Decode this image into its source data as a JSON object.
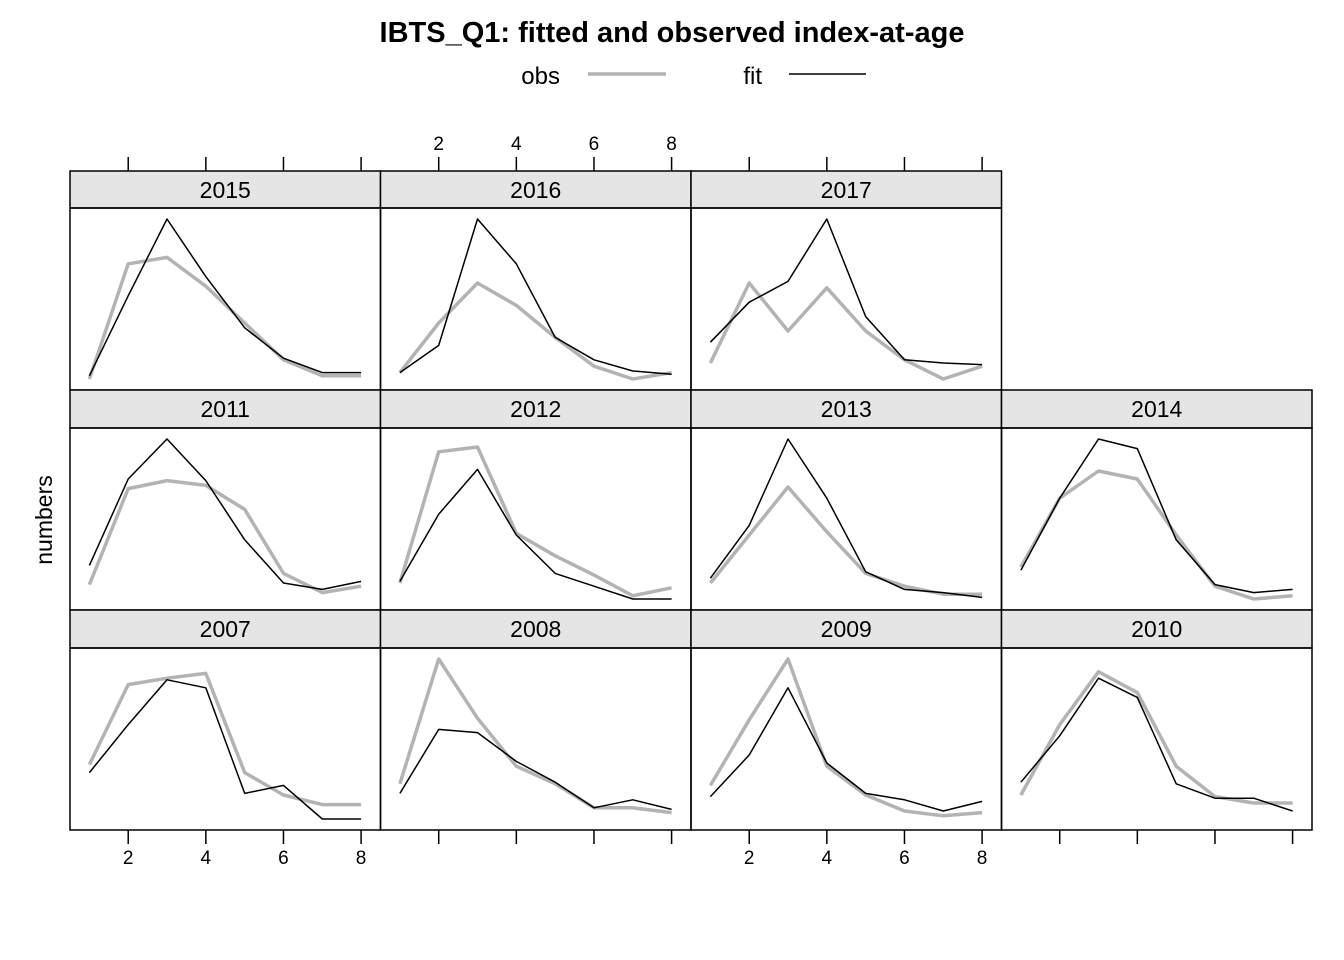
{
  "chart_data": {
    "type": "line",
    "title": "IBTS_Q1: fitted and observed index-at-age",
    "ylabel": "numbers",
    "xlabel": "",
    "xlim": [
      0.5,
      8.5
    ],
    "x_ticks": [
      2,
      4,
      6,
      8
    ],
    "ages": [
      1,
      2,
      3,
      4,
      5,
      6,
      7,
      8
    ],
    "legend": [
      {
        "name": "obs",
        "color": "#b3b3b3"
      },
      {
        "name": "fit",
        "color": "#000000"
      }
    ],
    "strip_color": "#e5e5e5",
    "panels": [
      {
        "year": "2015",
        "obs": [
          0.0,
          0.72,
          0.76,
          0.58,
          0.35,
          0.12,
          0.02,
          0.02
        ],
        "fit": [
          0.02,
          0.52,
          1.0,
          0.64,
          0.32,
          0.13,
          0.04,
          0.04
        ]
      },
      {
        "year": "2016",
        "obs": [
          0.04,
          0.35,
          0.6,
          0.46,
          0.26,
          0.08,
          0.0,
          0.04
        ],
        "fit": [
          0.04,
          0.21,
          1.0,
          0.72,
          0.26,
          0.12,
          0.05,
          0.03
        ]
      },
      {
        "year": "2017",
        "obs": [
          0.1,
          0.6,
          0.3,
          0.57,
          0.3,
          0.12,
          0.0,
          0.08
        ],
        "fit": [
          0.23,
          0.48,
          0.61,
          1.0,
          0.39,
          0.12,
          0.1,
          0.09
        ]
      },
      {
        "year": "2011",
        "obs": [
          0.09,
          0.69,
          0.74,
          0.71,
          0.56,
          0.16,
          0.04,
          0.08
        ],
        "fit": [
          0.21,
          0.75,
          1.0,
          0.74,
          0.37,
          0.1,
          0.06,
          0.11
        ]
      },
      {
        "year": "2012",
        "obs": [
          0.1,
          0.92,
          0.95,
          0.41,
          0.27,
          0.15,
          0.02,
          0.07
        ],
        "fit": [
          0.11,
          0.53,
          0.81,
          0.4,
          0.16,
          0.08,
          0.0,
          0.0
        ]
      },
      {
        "year": "2013",
        "obs": [
          0.1,
          0.4,
          0.7,
          0.42,
          0.16,
          0.08,
          0.03,
          0.03
        ],
        "fit": [
          0.13,
          0.46,
          1.0,
          0.63,
          0.17,
          0.06,
          0.04,
          0.01
        ]
      },
      {
        "year": "2014",
        "obs": [
          0.2,
          0.63,
          0.8,
          0.75,
          0.4,
          0.08,
          0.0,
          0.02
        ],
        "fit": [
          0.18,
          0.63,
          1.0,
          0.94,
          0.37,
          0.09,
          0.04,
          0.06
        ]
      },
      {
        "year": "2007",
        "obs": [
          0.34,
          0.84,
          0.88,
          0.91,
          0.29,
          0.15,
          0.09,
          0.09
        ],
        "fit": [
          0.29,
          0.59,
          0.87,
          0.82,
          0.16,
          0.21,
          0.0,
          0.0
        ]
      },
      {
        "year": "2008",
        "obs": [
          0.22,
          1.0,
          0.63,
          0.33,
          0.22,
          0.07,
          0.07,
          0.04
        ],
        "fit": [
          0.16,
          0.56,
          0.54,
          0.36,
          0.23,
          0.07,
          0.12,
          0.06
        ]
      },
      {
        "year": "2009",
        "obs": [
          0.21,
          0.62,
          1.0,
          0.33,
          0.15,
          0.05,
          0.02,
          0.04
        ],
        "fit": [
          0.14,
          0.4,
          0.82,
          0.35,
          0.16,
          0.12,
          0.05,
          0.11
        ]
      },
      {
        "year": "2010",
        "obs": [
          0.15,
          0.59,
          0.92,
          0.79,
          0.33,
          0.14,
          0.1,
          0.1
        ],
        "fit": [
          0.23,
          0.52,
          0.88,
          0.76,
          0.22,
          0.13,
          0.13,
          0.05
        ]
      }
    ]
  }
}
